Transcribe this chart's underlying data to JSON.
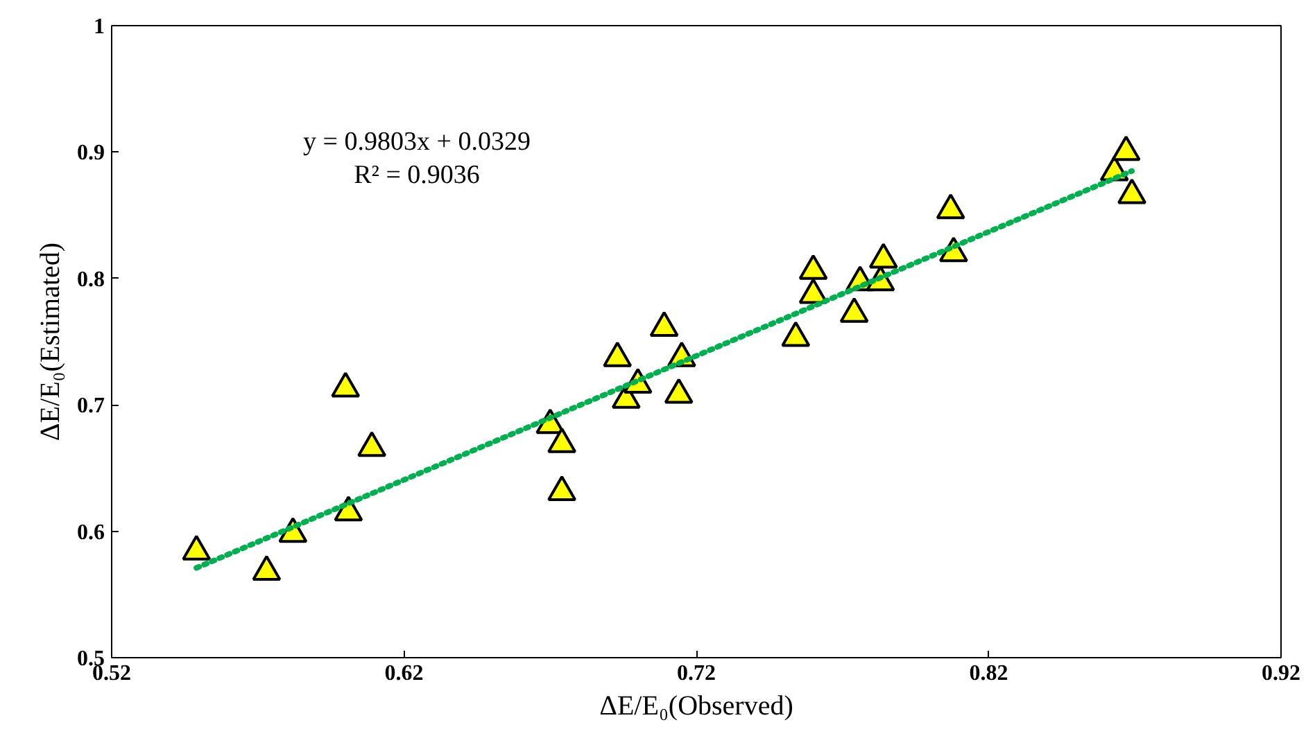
{
  "chart_data": {
    "type": "scatter",
    "xlabel": "ΔE/E₀(Observed)",
    "ylabel": "ΔE/E₀(Estimated)",
    "annotations": [
      "y = 0.9803x + 0.0329",
      "R² = 0.9036"
    ],
    "xlim": [
      0.52,
      0.92
    ],
    "ylim": [
      0.5,
      1
    ],
    "xticks": [
      0.52,
      0.62,
      0.72,
      0.82,
      0.92
    ],
    "yticks": [
      0.5,
      0.6,
      0.7,
      0.8,
      0.9,
      {
        "value": 1,
        "label": "1"
      }
    ],
    "grid": false,
    "marker": "triangle",
    "series": [
      {
        "color": "#ffff00",
        "x": [
          0.549,
          0.573,
          0.582,
          0.6,
          0.601,
          0.609,
          0.67,
          0.674,
          0.674,
          0.693,
          0.696,
          0.7,
          0.709,
          0.715,
          0.714,
          0.754,
          0.76,
          0.76,
          0.774,
          0.776,
          0.784,
          0.783,
          0.807,
          0.808,
          0.863,
          0.867,
          0.869
        ],
        "values": [
          0.584,
          0.568,
          0.598,
          0.713,
          0.615,
          0.666,
          0.684,
          0.669,
          0.631,
          0.737,
          0.704,
          0.716,
          0.761,
          0.737,
          0.708,
          0.753,
          0.806,
          0.787,
          0.772,
          0.797,
          0.815,
          0.797,
          0.854,
          0.82,
          0.884,
          0.9,
          0.866
        ]
      },
      {
        "type": "line",
        "color": "#00b050",
        "line_style": "dotted",
        "marker": "none",
        "x": [
          0.549,
          0.869
        ],
        "values": [
          0.571,
          0.885
        ]
      }
    ]
  }
}
